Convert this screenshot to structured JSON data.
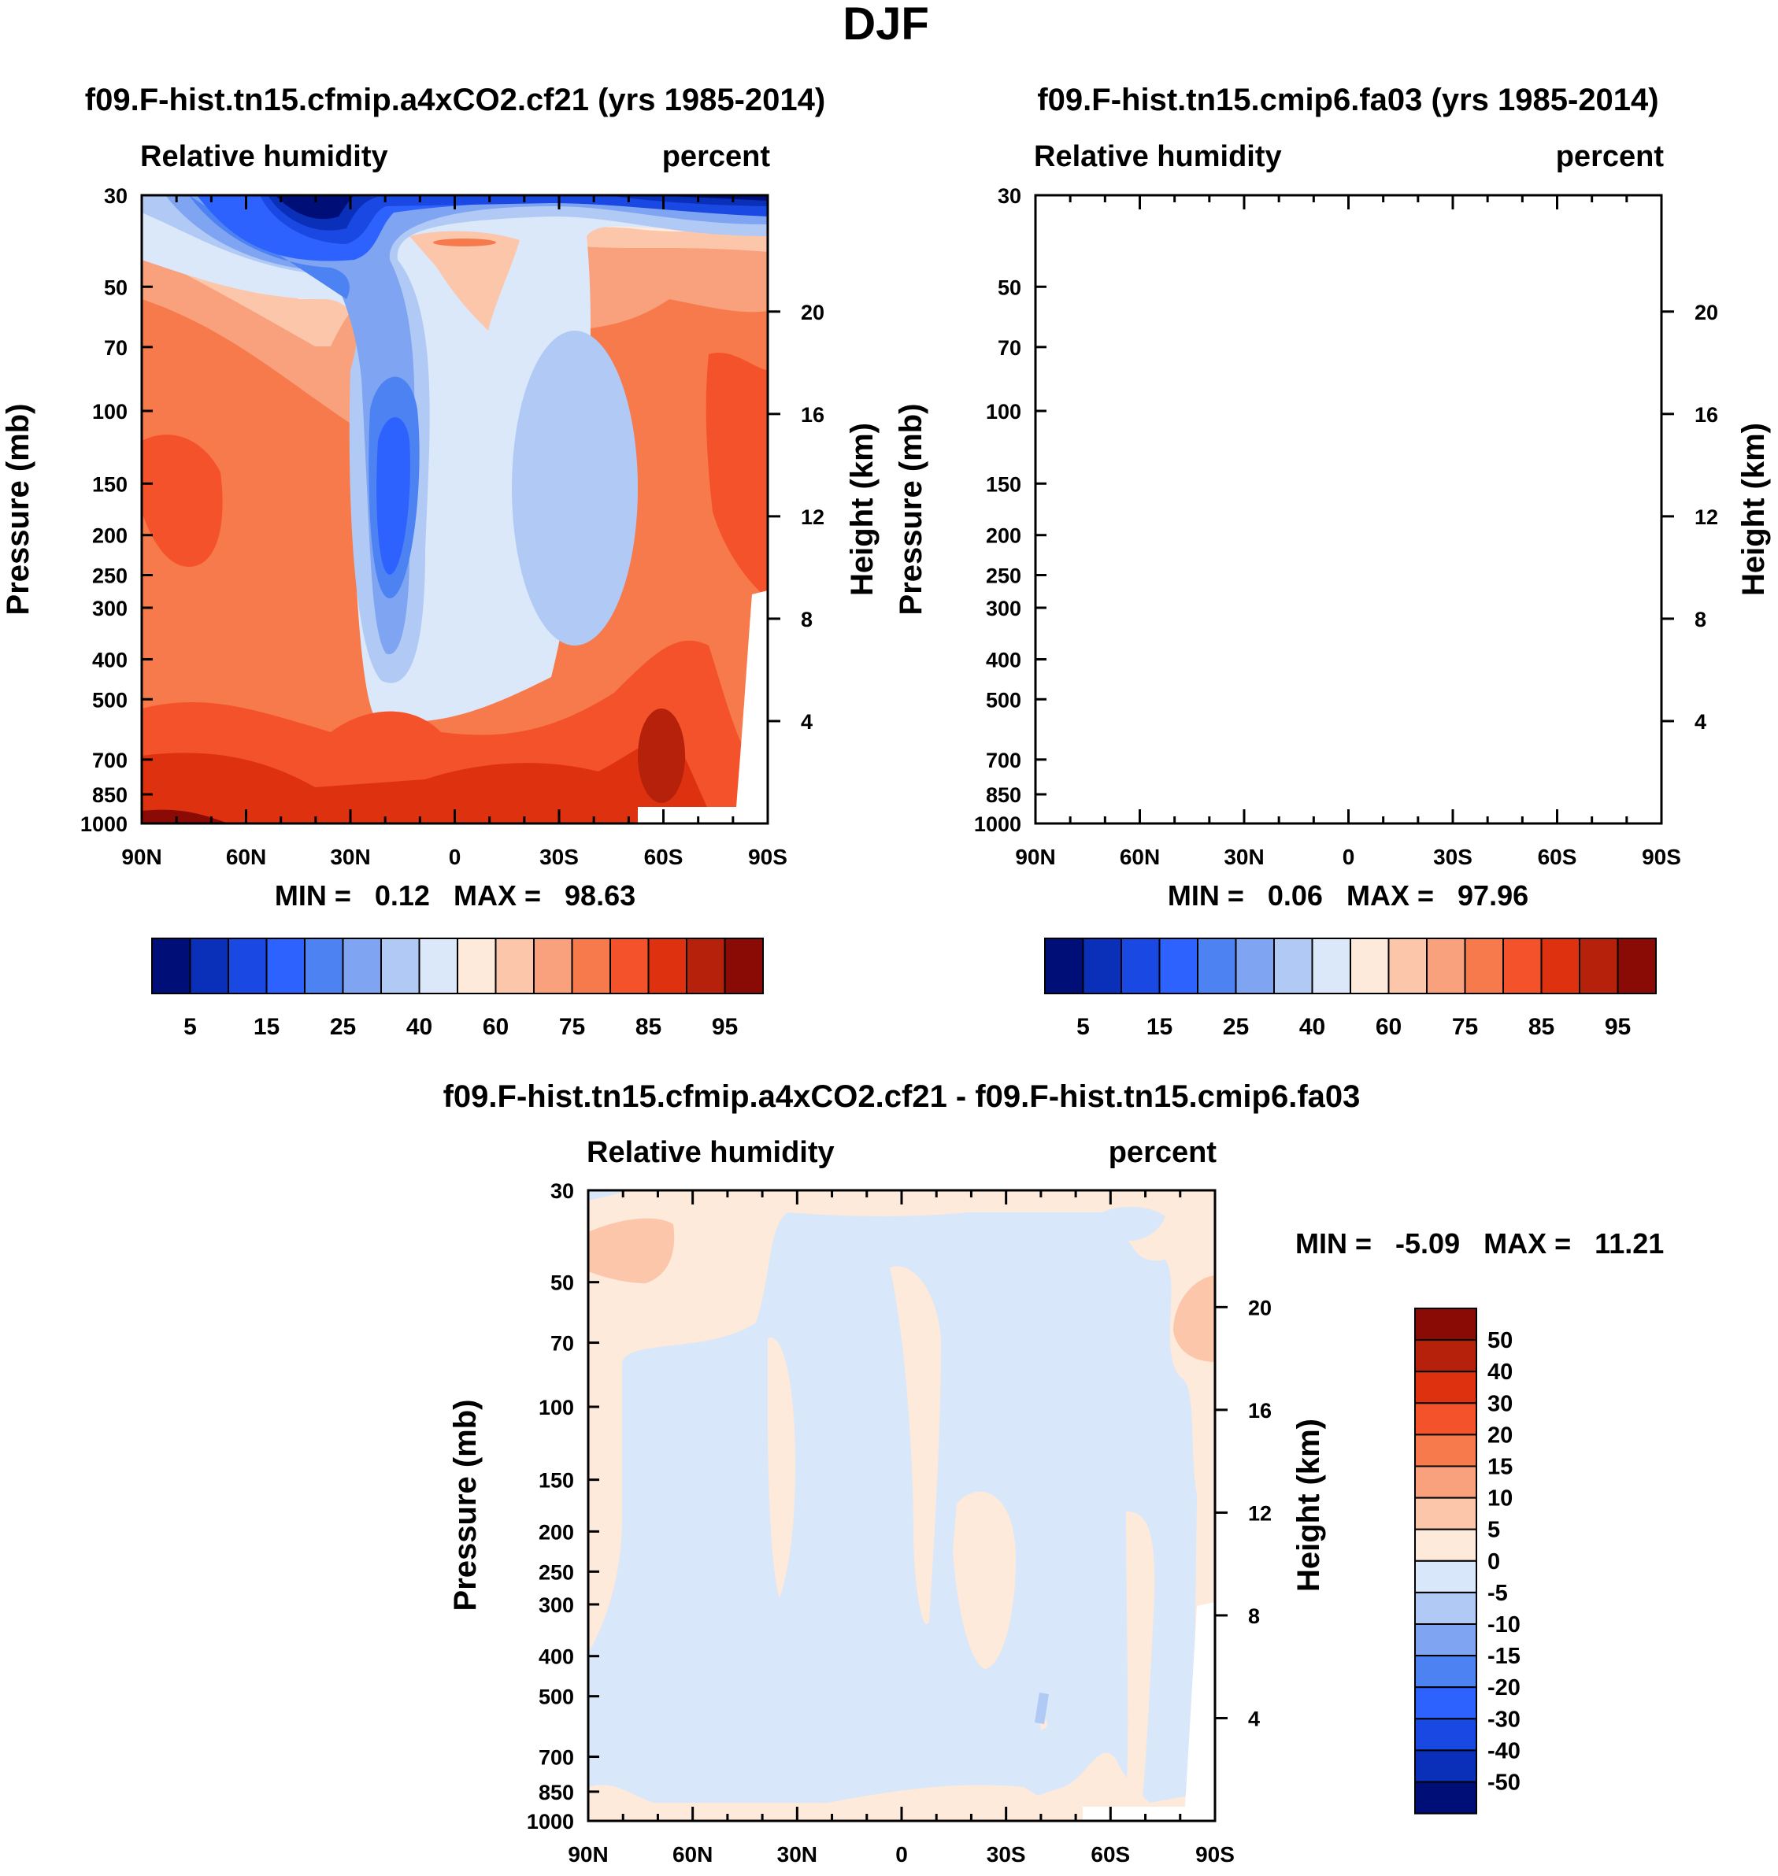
{
  "figure": {
    "title": "DJF"
  },
  "colors": {
    "abs_palette": [
      "#000f78",
      "#0a2fb8",
      "#1a48e3",
      "#2e62ff",
      "#4d82f2",
      "#7ea4f2",
      "#b1c9f5",
      "#dbe8f9",
      "#fdeadb",
      "#fcc6ab",
      "#f8a17c",
      "#f77a4c",
      "#f4522a",
      "#dd3110",
      "#b5210a",
      "#8a0a05"
    ],
    "diff_palette": [
      "#000f78",
      "#0a2fb8",
      "#1a48e3",
      "#2e62ff",
      "#4d82f2",
      "#7ea4f2",
      "#b1c9f5",
      "#d8e7f9",
      "#fdeadb",
      "#fcc6ab",
      "#f8a17c",
      "#f77a4c",
      "#f4522a",
      "#dd3110",
      "#b5210a",
      "#8a0a05"
    ]
  },
  "chart_data": [
    {
      "type": "heatmap",
      "panel": "case",
      "title": "f09.F-hist.tn15.cfmip.a4xCO2.cf21 (yrs 1985-2014)",
      "left_label": "Relative humidity",
      "right_label": "percent",
      "ylabel": "Pressure (mb)",
      "y2label": "Height (km)",
      "xticks": [
        "90N",
        "60N",
        "30N",
        "0",
        "30S",
        "60S",
        "90S"
      ],
      "x_values": [
        90,
        60,
        30,
        0,
        -30,
        -60,
        -90
      ],
      "yticks": [
        "30",
        "50",
        "70",
        "100",
        "150",
        "200",
        "250",
        "300",
        "400",
        "500",
        "700",
        "850",
        "1000"
      ],
      "y_values": [
        30,
        50,
        70,
        100,
        150,
        200,
        250,
        300,
        400,
        500,
        700,
        850,
        1000
      ],
      "y2ticks": [
        "20",
        "16",
        "12",
        "8",
        "4"
      ],
      "y2_values": [
        20,
        16,
        12,
        8,
        4
      ],
      "ylim": [
        1000,
        30
      ],
      "xlim": [
        90,
        -90
      ],
      "stats": {
        "min_label": "MIN =",
        "min_value": "0.12",
        "max_label": "MAX =",
        "max_value": "98.63"
      },
      "colorbar_levels": [
        5,
        10,
        15,
        20,
        25,
        30,
        40,
        50,
        60,
        65,
        75,
        80,
        85,
        90,
        95
      ],
      "colorbar_labels": [
        "5",
        "15",
        "25",
        "40",
        "60",
        "75",
        "85",
        "95"
      ]
    },
    {
      "type": "heatmap",
      "panel": "control",
      "title": "f09.F-hist.tn15.cmip6.fa03 (yrs 1985-2014)",
      "left_label": "Relative humidity",
      "right_label": "percent",
      "ylabel": "Pressure (mb)",
      "y2label": "Height (km)",
      "xticks": [
        "90N",
        "60N",
        "30N",
        "0",
        "30S",
        "60S",
        "90S"
      ],
      "x_values": [
        90,
        60,
        30,
        0,
        -30,
        -60,
        -90
      ],
      "yticks": [
        "30",
        "50",
        "70",
        "100",
        "150",
        "200",
        "250",
        "300",
        "400",
        "500",
        "700",
        "850",
        "1000"
      ],
      "y_values": [
        30,
        50,
        70,
        100,
        150,
        200,
        250,
        300,
        400,
        500,
        700,
        850,
        1000
      ],
      "y2ticks": [
        "20",
        "16",
        "12",
        "8",
        "4"
      ],
      "y2_values": [
        20,
        16,
        12,
        8,
        4
      ],
      "ylim": [
        1000,
        30
      ],
      "xlim": [
        90,
        -90
      ],
      "stats": {
        "min_label": "MIN =",
        "min_value": "0.06",
        "max_label": "MAX =",
        "max_value": "97.96"
      },
      "colorbar_levels": [
        5,
        10,
        15,
        20,
        25,
        30,
        40,
        50,
        60,
        65,
        75,
        80,
        85,
        90,
        95
      ],
      "colorbar_labels": [
        "5",
        "15",
        "25",
        "40",
        "60",
        "75",
        "85",
        "95"
      ]
    },
    {
      "type": "heatmap",
      "panel": "difference",
      "title": "f09.F-hist.tn15.cfmip.a4xCO2.cf21 - f09.F-hist.tn15.cmip6.fa03",
      "left_label": "Relative humidity",
      "right_label": "percent",
      "ylabel": "Pressure (mb)",
      "y2label": "Height (km)",
      "xticks": [
        "90N",
        "60N",
        "30N",
        "0",
        "30S",
        "60S",
        "90S"
      ],
      "x_values": [
        90,
        60,
        30,
        0,
        -30,
        -60,
        -90
      ],
      "yticks": [
        "30",
        "50",
        "70",
        "100",
        "150",
        "200",
        "250",
        "300",
        "400",
        "500",
        "700",
        "850",
        "1000"
      ],
      "y_values": [
        30,
        50,
        70,
        100,
        150,
        200,
        250,
        300,
        400,
        500,
        700,
        850,
        1000
      ],
      "y2ticks": [
        "20",
        "16",
        "12",
        "8",
        "4"
      ],
      "y2_values": [
        20,
        16,
        12,
        8,
        4
      ],
      "ylim": [
        1000,
        30
      ],
      "xlim": [
        90,
        -90
      ],
      "stats": {
        "min_label": "MIN =",
        "min_value": "-5.09",
        "max_label": "MAX =",
        "max_value": "11.21"
      },
      "colorbar_levels": [
        -50,
        -40,
        -30,
        -20,
        -15,
        -10,
        -5,
        0,
        5,
        10,
        15,
        20,
        30,
        40,
        50
      ],
      "colorbar_labels": [
        "50",
        "40",
        "30",
        "20",
        "15",
        "10",
        "5",
        "0",
        "-5",
        "-10",
        "-15",
        "-20",
        "-30",
        "-40",
        "-50"
      ]
    }
  ]
}
